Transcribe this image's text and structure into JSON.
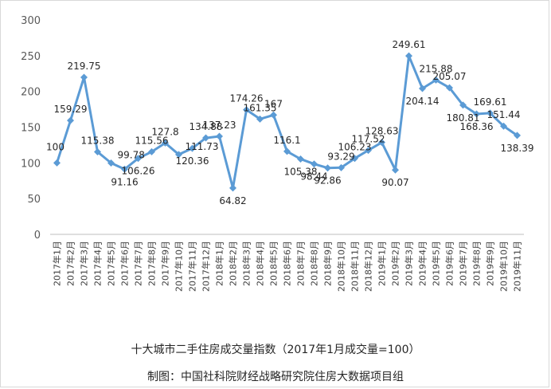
{
  "chart_data": {
    "type": "line",
    "title": "",
    "xlabel": "",
    "ylabel": "",
    "ylim": [
      0,
      300
    ],
    "yticks": [
      0,
      50,
      100,
      150,
      200,
      250,
      300
    ],
    "grid": false,
    "legend": "none",
    "line_color": "#5b9bd5",
    "categories": [
      "2017年1月",
      "2017年2月",
      "2017年3月",
      "2017年4月",
      "2017年5月",
      "2017年6月",
      "2017年7月",
      "2017年8月",
      "2017年9月",
      "2017年10月",
      "2017年11月",
      "2017年12月",
      "2018年1月",
      "2018年2月",
      "2018年3月",
      "2018年4月",
      "2018年5月",
      "2018年6月",
      "2018年7月",
      "2018年8月",
      "2018年9月",
      "2018年10月",
      "2018年11月",
      "2018年12月",
      "2019年1月",
      "2019年2月",
      "2019年3月",
      "2019年4月",
      "2019年5月",
      "2019年6月",
      "2019年7月",
      "2019年8月",
      "2019年9月",
      "2019年10月",
      "2019年11月"
    ],
    "values": [
      100,
      159.29,
      219.75,
      115.38,
      99.78,
      91.16,
      106.26,
      115.56,
      127.8,
      111.73,
      120.36,
      134.88,
      137.23,
      64.82,
      174.26,
      161.35,
      167,
      116.1,
      105.38,
      98.44,
      92.86,
      93.29,
      106.23,
      117.52,
      128.63,
      90.07,
      249.61,
      204.14,
      215.88,
      205.07,
      180.81,
      168.36,
      169.61,
      151.44,
      138.39
    ],
    "data_labels": [
      "100",
      "159.29",
      "219.75",
      "115.38",
      "99.78",
      "91.16",
      "106.26",
      "115.56",
      "127.8",
      "111.73",
      "120.36",
      "134.88",
      "137.23",
      "64.82",
      "174.26",
      "161.35",
      "167",
      "116.1",
      "105.38",
      "98.44",
      "92.86",
      "93.29",
      "106.23",
      "117.52",
      "128.63",
      "90.07",
      "249.61",
      "204.14",
      "215.88",
      "205.07",
      "180.81",
      "168.36",
      "169.61",
      "151.44",
      "138.39"
    ]
  },
  "captions": {
    "title": "十大城市二手住房成交量指数（2017年1月成交量=100）",
    "credit": "制图：中国社科院财经战略研究院住房大数据项目组"
  }
}
